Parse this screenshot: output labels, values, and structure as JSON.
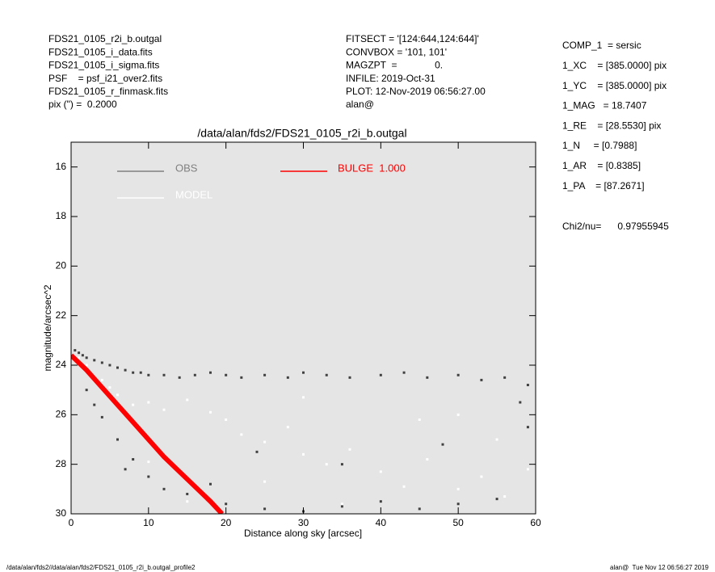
{
  "header": {
    "left": [
      "FDS21_0105_r2i_b.outgal",
      "FDS21_0105_i_data.fits",
      "FDS21_0105_i_sigma.fits",
      "PSF    = psf_i21_over2.fits",
      "FDS21_0105_r_finmask.fits",
      "pix (\") =  0.2000"
    ],
    "center": [
      "FITSECT = '[124:644,124:644]'",
      "CONVBOX = '101, 101'",
      "MAGZPT  =              0.",
      "INFILE: 2019-Oct-31",
      "PLOT: 12-Nov-2019 06:56:27.00",
      "alan@"
    ],
    "right": [
      "COMP_1  = sersic",
      "1_XC    = [385.0000] pix",
      "1_YC    = [385.0000] pix",
      "1_MAG   = 18.7407",
      "1_RE    = [28.5530] pix",
      "1_N     = [0.7988]",
      "1_AR    = [0.8385]",
      "1_PA    = [87.2671]"
    ],
    "chi2": "Chi2/nu=      0.97955945"
  },
  "footer": {
    "left": "/data/alan/fds2//data/alan/fds2/FDS21_0105_r2i_b.outgal_profile2",
    "right": "alan@  Tue Nov 12 06:56:27 2019"
  },
  "chart_data": {
    "type": "scatter",
    "title": "/data/alan/fds2/FDS21_0105_r2i_b.outgal",
    "xlabel": "Distance along sky [arcsec]",
    "ylabel": "magnitude/arcsec^2",
    "xlim": [
      0,
      60
    ],
    "xticks": [
      0,
      10,
      20,
      30,
      40,
      50,
      60
    ],
    "ylim": [
      30,
      15
    ],
    "yticks": [
      16,
      18,
      20,
      22,
      24,
      26,
      28,
      30
    ],
    "background": "#e5e5e5",
    "series": [
      {
        "name": "OBS",
        "color": "#808080",
        "marker_color": "#404040",
        "style": "points",
        "x": [
          0.5,
          1,
          1.5,
          2,
          3,
          4,
          5,
          6,
          7,
          8,
          9,
          10,
          12,
          14,
          16,
          18,
          20,
          22,
          25,
          28,
          30,
          33,
          36,
          40,
          43,
          46,
          50,
          53,
          56,
          59,
          2,
          4,
          6,
          8,
          10,
          15,
          20,
          25,
          30,
          35,
          40,
          45,
          50,
          55,
          59,
          3,
          7,
          12,
          18,
          24,
          35,
          48,
          58
        ],
        "values": [
          23.4,
          23.5,
          23.6,
          23.7,
          23.8,
          23.9,
          24.0,
          24.1,
          24.2,
          24.3,
          24.3,
          24.4,
          24.4,
          24.5,
          24.4,
          24.3,
          24.4,
          24.5,
          24.4,
          24.5,
          24.3,
          24.4,
          24.5,
          24.4,
          24.3,
          24.5,
          24.4,
          24.6,
          24.5,
          24.8,
          25.0,
          26.1,
          27.0,
          27.8,
          28.5,
          29.2,
          29.6,
          29.8,
          29.9,
          29.7,
          29.5,
          29.8,
          29.6,
          29.4,
          26.5,
          25.6,
          28.2,
          29.0,
          28.8,
          27.5,
          28.0,
          27.2,
          25.5
        ]
      },
      {
        "name": "MODEL",
        "color": "#ffffff",
        "marker_color": "#ffffff",
        "style": "points",
        "x": [
          1,
          2,
          4,
          6,
          8,
          10,
          12,
          15,
          18,
          20,
          22,
          25,
          28,
          30,
          33,
          36,
          40,
          43,
          46,
          50,
          53,
          56,
          59,
          5,
          15,
          25,
          35,
          45,
          55,
          10,
          30,
          50
        ],
        "values": [
          23.7,
          24.0,
          24.6,
          25.2,
          25.6,
          25.5,
          25.8,
          25.4,
          25.9,
          26.2,
          26.8,
          27.1,
          26.5,
          27.6,
          28.0,
          27.4,
          28.3,
          28.9,
          27.8,
          29.0,
          28.5,
          29.3,
          28.2,
          24.9,
          29.5,
          28.7,
          29.6,
          26.2,
          27.0,
          27.9,
          25.3,
          26.0
        ]
      },
      {
        "name": "BULGE  1.000",
        "color": "#ff0000",
        "marker_color": "#ff0000",
        "style": "line",
        "x": [
          0,
          2,
          4,
          6,
          8,
          10,
          12,
          14,
          16,
          18,
          19.5
        ],
        "values": [
          23.6,
          24.2,
          24.9,
          25.6,
          26.3,
          27.0,
          27.7,
          28.3,
          28.9,
          29.5,
          30
        ]
      }
    ]
  }
}
